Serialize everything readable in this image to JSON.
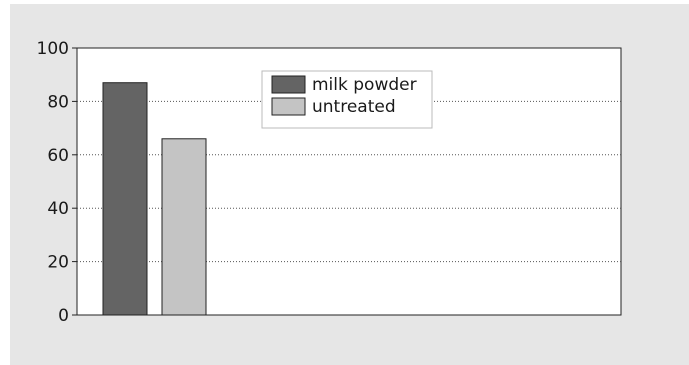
{
  "chart_data": {
    "type": "bar",
    "title": "",
    "xlabel": "",
    "ylabel": "",
    "ylim": [
      0,
      100
    ],
    "yticks": [
      0,
      20,
      40,
      60,
      80,
      100
    ],
    "grid": "horizontal dotted",
    "legend_position": "top-center",
    "series": [
      {
        "name": "milk powder",
        "values": [
          87
        ],
        "color": "#646464"
      },
      {
        "name": "untreated",
        "values": [
          66
        ],
        "color": "#c4c4c4"
      }
    ]
  }
}
